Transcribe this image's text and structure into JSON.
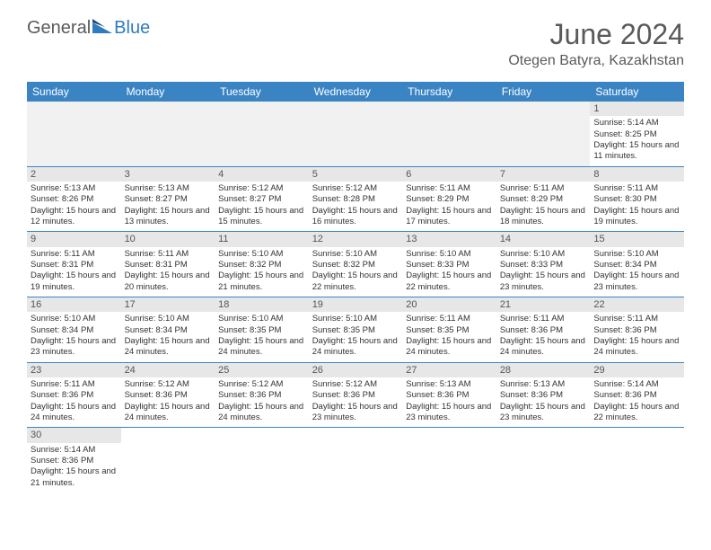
{
  "brand": {
    "part1": "General",
    "part2": "Blue"
  },
  "title": "June 2024",
  "location": "Otegen Batyra, Kazakhstan",
  "colors": {
    "header_bg": "#3b84c4",
    "header_text": "#ffffff",
    "daynum_bg": "#e7e7e7",
    "empty_bg": "#f1f1f1",
    "border": "#3b84c4",
    "brand_blue": "#2f7bbf",
    "text": "#333333",
    "title_color": "#5a5a5a"
  },
  "typography": {
    "title_fontsize": 32,
    "location_fontsize": 16,
    "dayheader_fontsize": 12,
    "cell_fontsize": 9.5,
    "logo_fontsize": 20
  },
  "day_headers": [
    "Sunday",
    "Monday",
    "Tuesday",
    "Wednesday",
    "Thursday",
    "Friday",
    "Saturday"
  ],
  "weeks": [
    [
      null,
      null,
      null,
      null,
      null,
      null,
      {
        "n": "1",
        "sunrise": "Sunrise: 5:14 AM",
        "sunset": "Sunset: 8:25 PM",
        "daylight": "Daylight: 15 hours and 11 minutes."
      }
    ],
    [
      {
        "n": "2",
        "sunrise": "Sunrise: 5:13 AM",
        "sunset": "Sunset: 8:26 PM",
        "daylight": "Daylight: 15 hours and 12 minutes."
      },
      {
        "n": "3",
        "sunrise": "Sunrise: 5:13 AM",
        "sunset": "Sunset: 8:27 PM",
        "daylight": "Daylight: 15 hours and 13 minutes."
      },
      {
        "n": "4",
        "sunrise": "Sunrise: 5:12 AM",
        "sunset": "Sunset: 8:27 PM",
        "daylight": "Daylight: 15 hours and 15 minutes."
      },
      {
        "n": "5",
        "sunrise": "Sunrise: 5:12 AM",
        "sunset": "Sunset: 8:28 PM",
        "daylight": "Daylight: 15 hours and 16 minutes."
      },
      {
        "n": "6",
        "sunrise": "Sunrise: 5:11 AM",
        "sunset": "Sunset: 8:29 PM",
        "daylight": "Daylight: 15 hours and 17 minutes."
      },
      {
        "n": "7",
        "sunrise": "Sunrise: 5:11 AM",
        "sunset": "Sunset: 8:29 PM",
        "daylight": "Daylight: 15 hours and 18 minutes."
      },
      {
        "n": "8",
        "sunrise": "Sunrise: 5:11 AM",
        "sunset": "Sunset: 8:30 PM",
        "daylight": "Daylight: 15 hours and 19 minutes."
      }
    ],
    [
      {
        "n": "9",
        "sunrise": "Sunrise: 5:11 AM",
        "sunset": "Sunset: 8:31 PM",
        "daylight": "Daylight: 15 hours and 19 minutes."
      },
      {
        "n": "10",
        "sunrise": "Sunrise: 5:11 AM",
        "sunset": "Sunset: 8:31 PM",
        "daylight": "Daylight: 15 hours and 20 minutes."
      },
      {
        "n": "11",
        "sunrise": "Sunrise: 5:10 AM",
        "sunset": "Sunset: 8:32 PM",
        "daylight": "Daylight: 15 hours and 21 minutes."
      },
      {
        "n": "12",
        "sunrise": "Sunrise: 5:10 AM",
        "sunset": "Sunset: 8:32 PM",
        "daylight": "Daylight: 15 hours and 22 minutes."
      },
      {
        "n": "13",
        "sunrise": "Sunrise: 5:10 AM",
        "sunset": "Sunset: 8:33 PM",
        "daylight": "Daylight: 15 hours and 22 minutes."
      },
      {
        "n": "14",
        "sunrise": "Sunrise: 5:10 AM",
        "sunset": "Sunset: 8:33 PM",
        "daylight": "Daylight: 15 hours and 23 minutes."
      },
      {
        "n": "15",
        "sunrise": "Sunrise: 5:10 AM",
        "sunset": "Sunset: 8:34 PM",
        "daylight": "Daylight: 15 hours and 23 minutes."
      }
    ],
    [
      {
        "n": "16",
        "sunrise": "Sunrise: 5:10 AM",
        "sunset": "Sunset: 8:34 PM",
        "daylight": "Daylight: 15 hours and 23 minutes."
      },
      {
        "n": "17",
        "sunrise": "Sunrise: 5:10 AM",
        "sunset": "Sunset: 8:34 PM",
        "daylight": "Daylight: 15 hours and 24 minutes."
      },
      {
        "n": "18",
        "sunrise": "Sunrise: 5:10 AM",
        "sunset": "Sunset: 8:35 PM",
        "daylight": "Daylight: 15 hours and 24 minutes."
      },
      {
        "n": "19",
        "sunrise": "Sunrise: 5:10 AM",
        "sunset": "Sunset: 8:35 PM",
        "daylight": "Daylight: 15 hours and 24 minutes."
      },
      {
        "n": "20",
        "sunrise": "Sunrise: 5:11 AM",
        "sunset": "Sunset: 8:35 PM",
        "daylight": "Daylight: 15 hours and 24 minutes."
      },
      {
        "n": "21",
        "sunrise": "Sunrise: 5:11 AM",
        "sunset": "Sunset: 8:36 PM",
        "daylight": "Daylight: 15 hours and 24 minutes."
      },
      {
        "n": "22",
        "sunrise": "Sunrise: 5:11 AM",
        "sunset": "Sunset: 8:36 PM",
        "daylight": "Daylight: 15 hours and 24 minutes."
      }
    ],
    [
      {
        "n": "23",
        "sunrise": "Sunrise: 5:11 AM",
        "sunset": "Sunset: 8:36 PM",
        "daylight": "Daylight: 15 hours and 24 minutes."
      },
      {
        "n": "24",
        "sunrise": "Sunrise: 5:12 AM",
        "sunset": "Sunset: 8:36 PM",
        "daylight": "Daylight: 15 hours and 24 minutes."
      },
      {
        "n": "25",
        "sunrise": "Sunrise: 5:12 AM",
        "sunset": "Sunset: 8:36 PM",
        "daylight": "Daylight: 15 hours and 24 minutes."
      },
      {
        "n": "26",
        "sunrise": "Sunrise: 5:12 AM",
        "sunset": "Sunset: 8:36 PM",
        "daylight": "Daylight: 15 hours and 23 minutes."
      },
      {
        "n": "27",
        "sunrise": "Sunrise: 5:13 AM",
        "sunset": "Sunset: 8:36 PM",
        "daylight": "Daylight: 15 hours and 23 minutes."
      },
      {
        "n": "28",
        "sunrise": "Sunrise: 5:13 AM",
        "sunset": "Sunset: 8:36 PM",
        "daylight": "Daylight: 15 hours and 23 minutes."
      },
      {
        "n": "29",
        "sunrise": "Sunrise: 5:14 AM",
        "sunset": "Sunset: 8:36 PM",
        "daylight": "Daylight: 15 hours and 22 minutes."
      }
    ],
    [
      {
        "n": "30",
        "sunrise": "Sunrise: 5:14 AM",
        "sunset": "Sunset: 8:36 PM",
        "daylight": "Daylight: 15 hours and 21 minutes."
      },
      null,
      null,
      null,
      null,
      null,
      null
    ]
  ]
}
